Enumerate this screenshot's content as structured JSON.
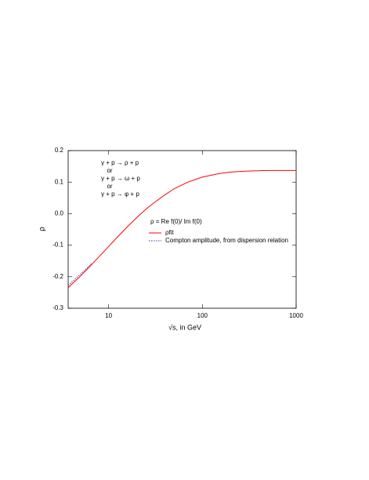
{
  "chart_data": {
    "type": "line",
    "xlabel": "√s, in GeV",
    "ylabel": "ρ",
    "xscale": "log",
    "xlim": [
      3.7,
      1000
    ],
    "xticks": [
      10,
      100,
      1000
    ],
    "ylim": [
      -0.3,
      0.2
    ],
    "yticks": [
      -0.3,
      -0.2,
      -0.1,
      {
        "value": 0,
        "label": "0.0"
      },
      0.1,
      0.2
    ],
    "annotations": [
      "γ + p →  ρ + p",
      "or",
      "γ + p →  ω + p",
      "or",
      "γ + p →  φ + p",
      "ρ = Re f(0)/ Im f(0)"
    ],
    "series": [
      {
        "name": "ρfit",
        "color": "#ff0000",
        "dash": "solid",
        "x": [
          3.7,
          4,
          5,
          6,
          7,
          8,
          10,
          13,
          16,
          20,
          25,
          30,
          40,
          50,
          70,
          100,
          150,
          200,
          300,
          500,
          700,
          1000
        ],
        "values": [
          -0.235,
          -0.225,
          -0.198,
          -0.174,
          -0.153,
          -0.135,
          -0.104,
          -0.068,
          -0.04,
          -0.012,
          0.014,
          0.033,
          0.06,
          0.079,
          0.1,
          0.116,
          0.127,
          0.132,
          0.135,
          0.137,
          0.137,
          0.137
        ]
      },
      {
        "name": "Compton amplitude, from dispersion relation",
        "color": "#3333aa",
        "dash": "dotted",
        "x": [
          3.7,
          4,
          5,
          6,
          6.6
        ],
        "values": [
          -0.228,
          -0.218,
          -0.192,
          -0.17,
          -0.158
        ]
      }
    ]
  }
}
